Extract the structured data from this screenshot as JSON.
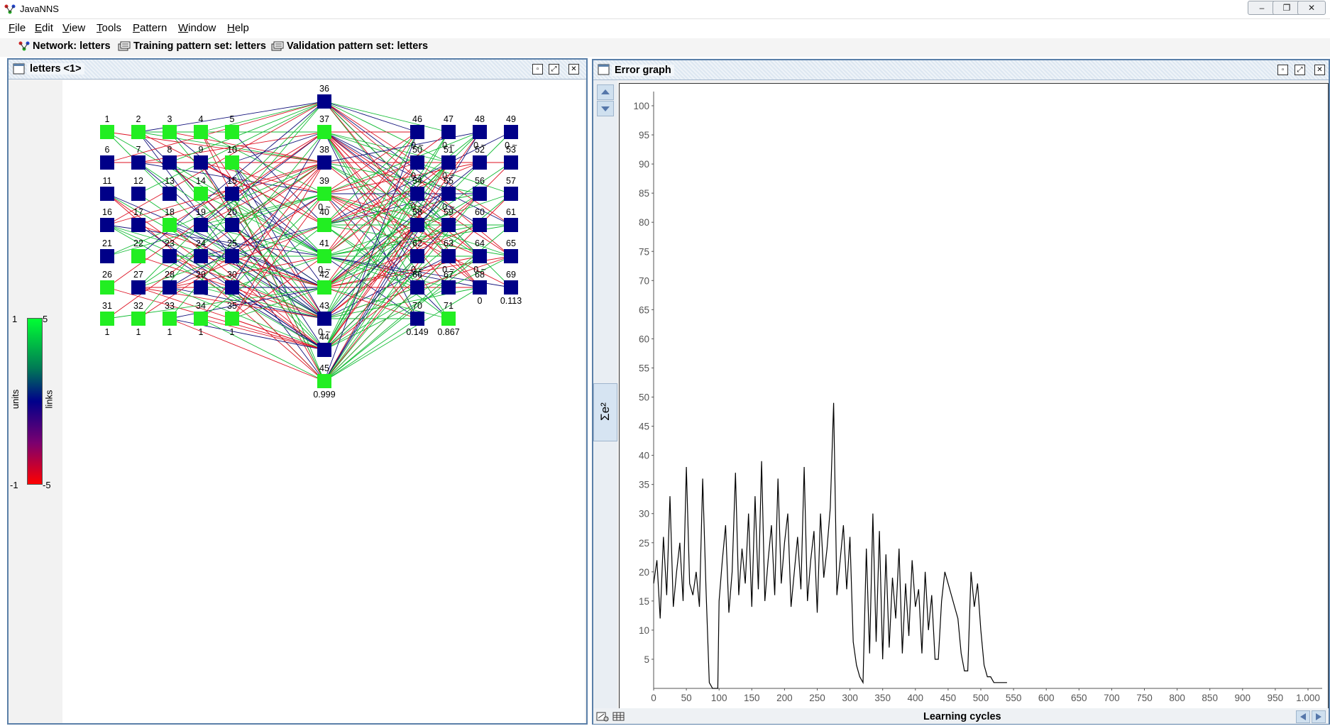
{
  "window": {
    "title": "JavaNNS",
    "min_label": "–",
    "restore_label": "❐",
    "close_label": "✕"
  },
  "menu": [
    {
      "label": "File",
      "underline": "F"
    },
    {
      "label": "Edit",
      "underline": "E"
    },
    {
      "label": "View",
      "underline": "V"
    },
    {
      "label": "Tools",
      "underline": "T"
    },
    {
      "label": "Pattern",
      "underline": "P"
    },
    {
      "label": "Window",
      "underline": "W"
    },
    {
      "label": "Help",
      "underline": "H"
    }
  ],
  "toolbar": {
    "network": "Network: letters",
    "training": "Training pattern set: letters",
    "validation": "Validation pattern set: letters"
  },
  "network_view": {
    "title": "letters <1>",
    "legend": {
      "units_label": "units",
      "links_label": "links",
      "units_max": "1",
      "units_min": "-1",
      "links_max": "5",
      "links_min": "-5",
      "colors": {
        "positive": "#00ff33",
        "zero": "#00008b",
        "negative": "#ff0000"
      }
    },
    "colors": {
      "active": "#22ee22",
      "inactive": "#000088"
    },
    "input_layer": {
      "ids": [
        1,
        2,
        3,
        4,
        5,
        6,
        7,
        8,
        9,
        10,
        11,
        12,
        13,
        14,
        15,
        16,
        17,
        18,
        19,
        20,
        21,
        22,
        23,
        24,
        25,
        26,
        27,
        28,
        29,
        30,
        31,
        32,
        33,
        34,
        35
      ],
      "active": [
        1,
        1,
        1,
        1,
        1,
        0,
        0,
        0,
        0,
        1,
        0,
        0,
        0,
        1,
        0,
        0,
        0,
        1,
        0,
        0,
        0,
        1,
        0,
        0,
        0,
        1,
        0,
        0,
        0,
        0,
        1,
        1,
        1,
        1,
        1
      ],
      "bottom_values": [
        "1",
        "1",
        "1",
        "1",
        "1"
      ]
    },
    "hidden_layer": {
      "ids": [
        36,
        37,
        38,
        39,
        40,
        41,
        42,
        43,
        44,
        45
      ],
      "active": [
        0,
        1,
        0,
        1,
        1,
        1,
        1,
        0,
        0,
        1
      ],
      "values": [
        "",
        "",
        "",
        "0.~",
        "",
        "0.~",
        "",
        "0.~",
        "",
        "0.999"
      ]
    },
    "output_layer": {
      "ids": [
        46,
        47,
        48,
        49,
        50,
        51,
        52,
        53,
        54,
        55,
        56,
        57,
        58,
        59,
        60,
        61,
        62,
        63,
        64,
        65,
        66,
        67,
        68,
        69,
        70,
        71
      ],
      "active": [
        0,
        0,
        0,
        0,
        0,
        0,
        0,
        0,
        0,
        0,
        0,
        0,
        0,
        0,
        0,
        0,
        0,
        0,
        0,
        0,
        0,
        0,
        0,
        0,
        0,
        1
      ],
      "values": [
        "0.~",
        "0.~",
        "0.~",
        "0.~",
        "0.~",
        "0.~",
        "",
        "",
        "0.~",
        "0.~",
        "",
        "",
        "",
        "",
        "",
        "",
        "0.~",
        "0.~",
        "0.~",
        "",
        "",
        "",
        "0",
        "0.113",
        "0.149",
        "0.867"
      ]
    }
  },
  "error_graph": {
    "title": "Error graph",
    "y_axis_label": "Σe²",
    "x_axis_label": "Learning cycles",
    "y_ticks": [
      "5",
      "10",
      "15",
      "20",
      "25",
      "30",
      "35",
      "40",
      "45",
      "50",
      "55",
      "60",
      "65",
      "70",
      "75",
      "80",
      "85",
      "90",
      "95",
      "100"
    ],
    "x_ticks": [
      "0",
      "50",
      "100",
      "150",
      "200",
      "250",
      "300",
      "350",
      "400",
      "450",
      "500",
      "550",
      "600",
      "650",
      "700",
      "750",
      "800",
      "850",
      "900",
      "950",
      "1.000"
    ]
  },
  "chart_data": {
    "type": "line",
    "title": "Error graph",
    "xlabel": "Learning cycles",
    "ylabel": "Σe²",
    "xlim": [
      0,
      1000
    ],
    "ylim": [
      0,
      100
    ],
    "series": [
      {
        "x": [
          0,
          5,
          10,
          15,
          20,
          25,
          30,
          35,
          40,
          45,
          50,
          55,
          60,
          65,
          70,
          75,
          80,
          85,
          90,
          95,
          98,
          100,
          105,
          110,
          115,
          120,
          125,
          130,
          135,
          140,
          145,
          150,
          155,
          160,
          165,
          170,
          175,
          180,
          185,
          190,
          195,
          200,
          205,
          210,
          215,
          220,
          225,
          230,
          235,
          240,
          245,
          250,
          255,
          260,
          265,
          270,
          275,
          280,
          285,
          290,
          295,
          300,
          305,
          310,
          315,
          320,
          325,
          330,
          335,
          340,
          345,
          350,
          355,
          360,
          365,
          370,
          375,
          380,
          385,
          390,
          395,
          400,
          405,
          410,
          415,
          420,
          425,
          430,
          435,
          440,
          445,
          450,
          455,
          460,
          465,
          470,
          475,
          480,
          485,
          490,
          495,
          500,
          505,
          510,
          515,
          520,
          525,
          530,
          535,
          540
        ],
        "y": [
          18,
          22,
          12,
          26,
          16,
          33,
          14,
          20,
          25,
          15,
          38,
          18,
          16,
          20,
          14,
          36,
          17,
          1,
          0,
          0,
          0,
          15,
          22,
          28,
          13,
          20,
          37,
          16,
          24,
          18,
          30,
          14,
          33,
          17,
          39,
          15,
          22,
          28,
          16,
          36,
          18,
          25,
          30,
          14,
          20,
          26,
          17,
          38,
          15,
          22,
          27,
          13,
          30,
          19,
          24,
          31,
          49,
          16,
          22,
          28,
          17,
          26,
          8,
          4,
          2,
          1,
          24,
          6,
          30,
          8,
          27,
          5,
          23,
          7,
          19,
          12,
          24,
          6,
          18,
          9,
          22,
          14,
          17,
          6,
          20,
          10,
          16,
          5,
          5,
          15,
          20,
          18,
          16,
          14,
          12,
          6,
          3,
          3,
          20,
          14,
          18,
          10,
          4,
          2,
          2,
          1,
          1,
          1,
          1,
          1
        ]
      }
    ]
  }
}
